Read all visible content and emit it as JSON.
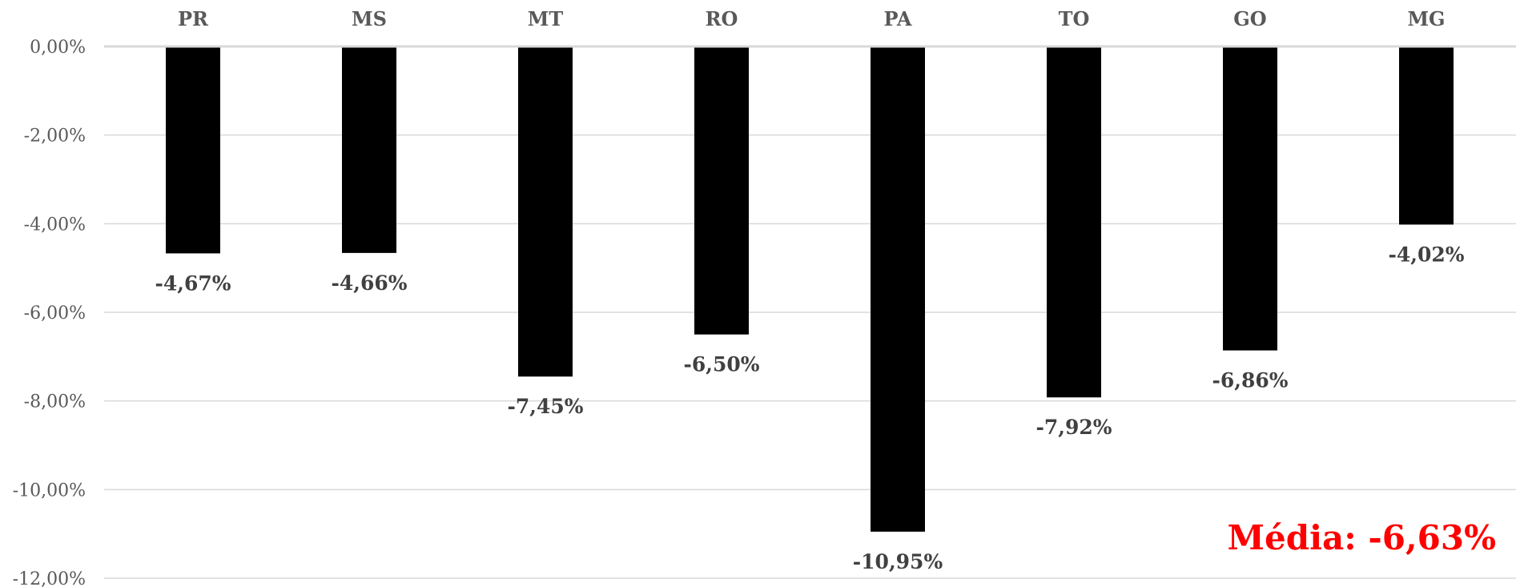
{
  "chart_data": {
    "type": "bar",
    "title": "",
    "xlabel": "",
    "ylabel": "",
    "categories": [
      "PR",
      "MS",
      "MT",
      "RO",
      "PA",
      "TO",
      "GO",
      "MG"
    ],
    "values": [
      -4.67,
      -4.66,
      -7.45,
      -6.5,
      -10.95,
      -7.92,
      -6.86,
      -4.02
    ],
    "data_labels": [
      "-4,67%",
      "-4,66%",
      "-7,45%",
      "-6,50%",
      "-10,95%",
      "-7,92%",
      "-6,86%",
      "-4,02%"
    ],
    "ylim": [
      -12,
      0
    ],
    "y_ticks": [
      0,
      -2,
      -4,
      -6,
      -8,
      -10,
      -12
    ],
    "y_tick_labels": [
      "0,00%",
      "-2,00%",
      "-4,00%",
      "-6,00%",
      "-8,00%",
      "-10,00%",
      "-12,00%"
    ],
    "category_axis_position": "top",
    "grid": true,
    "bar_color": "#000000",
    "annotation": {
      "text": "Média: -6,63%",
      "color": "#ff0000",
      "placement": "bottom-right"
    }
  }
}
